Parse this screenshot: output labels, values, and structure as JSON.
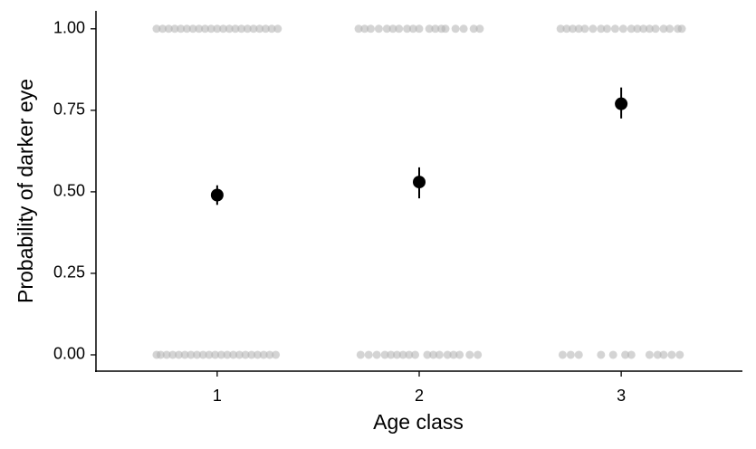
{
  "chart_data": {
    "type": "scatter",
    "xlabel": "Age class",
    "ylabel": "Probability of darker eye",
    "xlim": [
      0.4,
      3.6
    ],
    "ylim": [
      -0.05,
      1.055
    ],
    "xticks": [
      1,
      2,
      3
    ],
    "yticks": [
      {
        "value": 0,
        "label": "0.00"
      },
      {
        "value": 0.25,
        "label": "0.25"
      },
      {
        "value": 0.5,
        "label": "0.50"
      },
      {
        "value": 0.75,
        "label": "0.75"
      },
      {
        "value": 1,
        "label": "1.00"
      }
    ],
    "grid": false,
    "series": [
      {
        "color": "#b0b0b0",
        "x": [
          0.7,
          0.73,
          0.76,
          0.79,
          0.82,
          0.85,
          0.88,
          0.91,
          0.94,
          0.97,
          1.0,
          1.03,
          1.06,
          1.09,
          1.12,
          1.15,
          1.18,
          1.21,
          1.24,
          1.27,
          1.3,
          0.7,
          0.72,
          0.75,
          0.78,
          0.81,
          0.84,
          0.87,
          0.9,
          0.93,
          0.96,
          0.99,
          1.02,
          1.05,
          1.08,
          1.11,
          1.14,
          1.17,
          1.2,
          1.23,
          1.26,
          1.29,
          1.7,
          1.73,
          1.76,
          1.8,
          1.84,
          1.87,
          1.9,
          1.94,
          1.97,
          2.0,
          2.05,
          2.08,
          2.11,
          2.13,
          2.18,
          2.22,
          2.27,
          2.3,
          1.71,
          1.75,
          1.79,
          1.83,
          1.86,
          1.89,
          1.92,
          1.95,
          1.98,
          2.04,
          2.07,
          2.1,
          2.14,
          2.17,
          2.2,
          2.25,
          2.29,
          2.7,
          2.73,
          2.76,
          2.79,
          2.82,
          2.86,
          2.9,
          2.93,
          2.97,
          3.01,
          3.05,
          3.08,
          3.11,
          3.14,
          3.17,
          3.21,
          3.24,
          3.28,
          3.3,
          2.71,
          2.75,
          2.79,
          2.9,
          2.96,
          3.02,
          3.05,
          3.14,
          3.18,
          3.21,
          3.25,
          3.29
        ],
        "values": [
          1,
          1,
          1,
          1,
          1,
          1,
          1,
          1,
          1,
          1,
          1,
          1,
          1,
          1,
          1,
          1,
          1,
          1,
          1,
          1,
          1,
          0,
          0,
          0,
          0,
          0,
          0,
          0,
          0,
          0,
          0,
          0,
          0,
          0,
          0,
          0,
          0,
          0,
          0,
          0,
          0,
          0,
          1,
          1,
          1,
          1,
          1,
          1,
          1,
          1,
          1,
          1,
          1,
          1,
          1,
          1,
          1,
          1,
          1,
          1,
          0,
          0,
          0,
          0,
          0,
          0,
          0,
          0,
          0,
          0,
          0,
          0,
          0,
          0,
          0,
          0,
          0,
          1,
          1,
          1,
          1,
          1,
          1,
          1,
          1,
          1,
          1,
          1,
          1,
          1,
          1,
          1,
          1,
          1,
          1,
          1,
          0,
          0,
          0,
          0,
          0,
          0,
          0,
          0,
          0,
          0,
          0,
          0
        ]
      },
      {
        "color": "#000000",
        "x": [
          1,
          2,
          3
        ],
        "values": [
          0.49,
          0.53,
          0.77
        ],
        "lower": [
          0.46,
          0.48,
          0.725
        ],
        "upper": [
          0.52,
          0.575,
          0.82
        ]
      }
    ]
  }
}
